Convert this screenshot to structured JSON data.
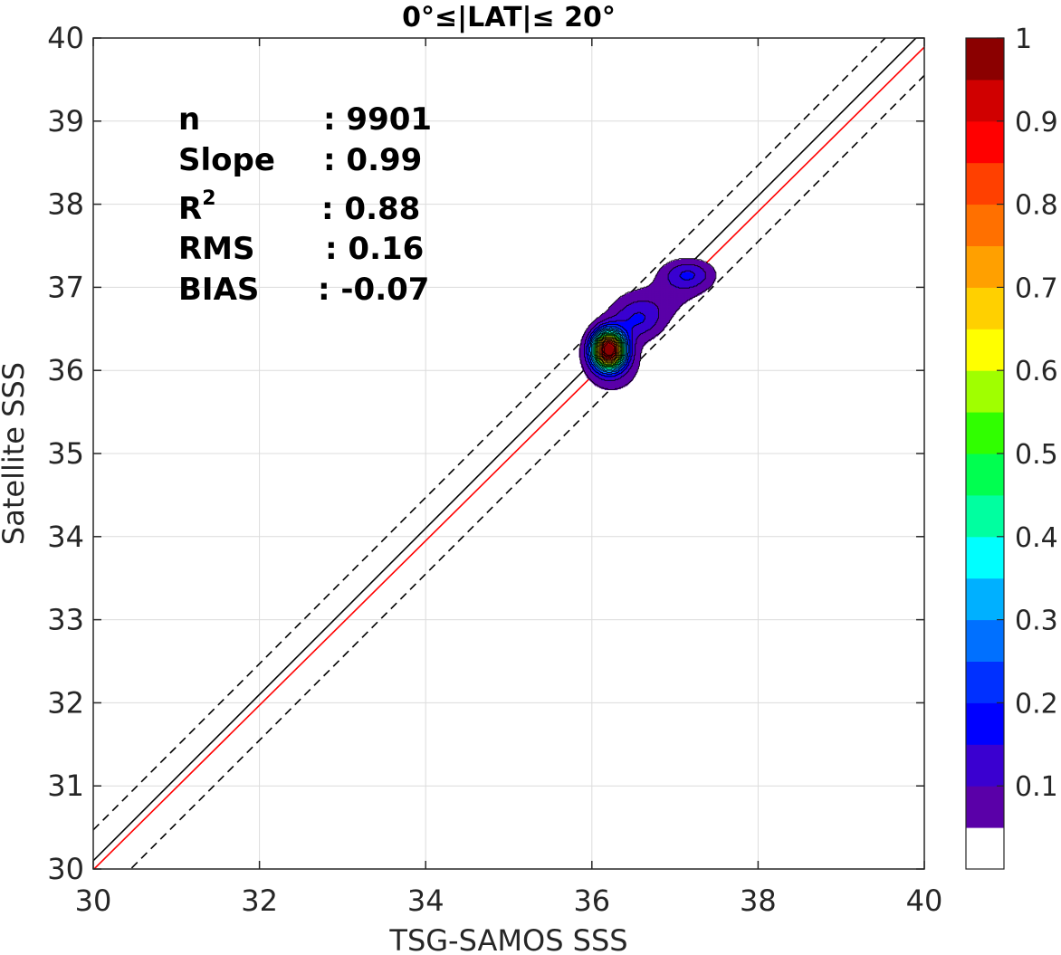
{
  "chart_data": {
    "type": "contour",
    "title": "0°≤|LAT|≤ 20°",
    "xlabel": "TSG-SAMOS SSS",
    "ylabel": "Satellite SSS",
    "xlim": [
      30,
      40
    ],
    "ylim": [
      30,
      40
    ],
    "xticks": [
      "30",
      "32",
      "34",
      "36",
      "38",
      "40"
    ],
    "yticks": [
      "30",
      "31",
      "32",
      "33",
      "34",
      "35",
      "36",
      "37",
      "38",
      "39",
      "40"
    ],
    "grid": true,
    "stats": [
      {
        "label": "n",
        "value": ": 9901"
      },
      {
        "label": "Slope",
        "value": ": 0.99"
      },
      {
        "label": "R",
        "sup": "2",
        "value": ": 0.88"
      },
      {
        "label": "RMS",
        "value": ": 0.16"
      },
      {
        "label": "BIAS",
        "value": ": -0.07"
      }
    ],
    "lines": {
      "identity": {
        "color": "#000000",
        "style": "solid"
      },
      "regression": {
        "color": "#ff0000",
        "style": "solid",
        "slope": 0.99,
        "intercept": 0.29
      },
      "upper_bound": {
        "color": "#000000",
        "style": "dashed",
        "offset": 0.4
      },
      "lower_bound": {
        "color": "#000000",
        "style": "dashed",
        "offset": -0.4
      }
    },
    "density_peak": {
      "x": 36.2,
      "y": 36.25
    },
    "colorbar": {
      "levels": 20,
      "tick_labels": [
        "1",
        "0.9",
        "0.8",
        "0.7",
        "0.6",
        "0.5",
        "0.4",
        "0.3",
        "0.2",
        "0.1"
      ],
      "colors": [
        "#ffffff",
        "#5a00a8",
        "#3a00d0",
        "#0000ff",
        "#0030ff",
        "#0070ff",
        "#00b0ff",
        "#00ffff",
        "#00ffa0",
        "#00ff50",
        "#30ff00",
        "#a0ff00",
        "#ffff00",
        "#ffd000",
        "#ffa000",
        "#ff7000",
        "#ff4000",
        "#ff0000",
        "#d00000",
        "#8b0000"
      ]
    }
  }
}
